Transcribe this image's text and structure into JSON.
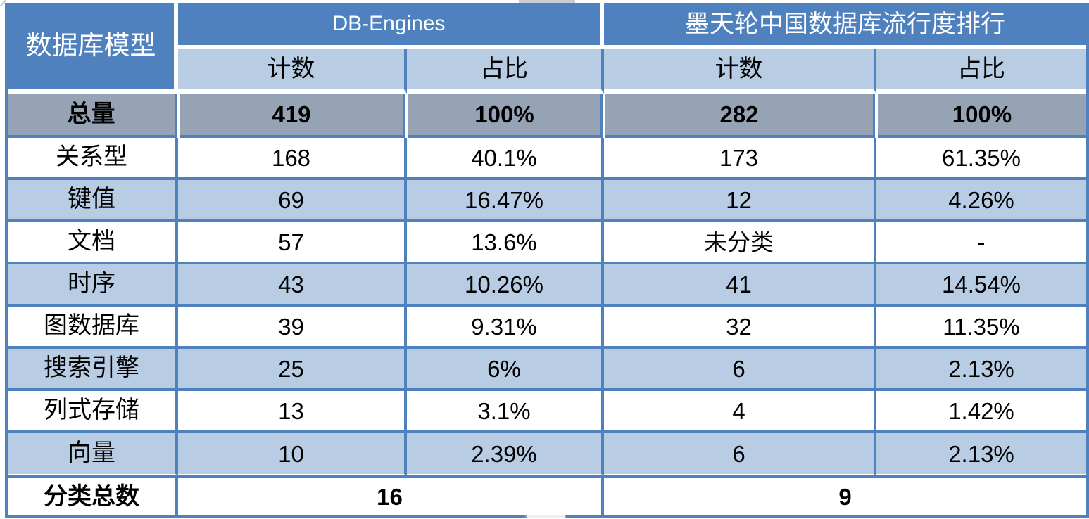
{
  "table": {
    "corner_header": "数据库模型",
    "group_headers": [
      {
        "label": "DB-Engines"
      },
      {
        "label": "墨天轮中国数据库流行度排行"
      }
    ],
    "sub_headers": [
      "计数",
      "占比",
      "计数",
      "占比"
    ],
    "total_row": {
      "label": "总量",
      "cells": [
        "419",
        "100%",
        "282",
        "100%"
      ]
    },
    "rows": [
      {
        "label": "关系型",
        "cells": [
          "168",
          "40.1%",
          "173",
          "61.35%"
        ]
      },
      {
        "label": "键值",
        "cells": [
          "69",
          "16.47%",
          "12",
          "4.26%"
        ]
      },
      {
        "label": "文档",
        "cells": [
          "57",
          "13.6%",
          "未分类",
          "-"
        ]
      },
      {
        "label": "时序",
        "cells": [
          "43",
          "10.26%",
          "41",
          "14.54%"
        ]
      },
      {
        "label": "图数据库",
        "cells": [
          "39",
          "9.31%",
          "32",
          "11.35%"
        ]
      },
      {
        "label": "搜索引擎",
        "cells": [
          "25",
          "6%",
          "6",
          "2.13%"
        ]
      },
      {
        "label": "列式存储",
        "cells": [
          "13",
          "3.1%",
          "4",
          "1.42%"
        ]
      },
      {
        "label": "向量",
        "cells": [
          "10",
          "2.39%",
          "6",
          "2.13%"
        ]
      }
    ],
    "footer_row": {
      "label": "分类总数",
      "cells": [
        "16",
        "9"
      ]
    }
  },
  "colors": {
    "header_blue": "#4e81bd",
    "band_light_blue": "#b8cce4",
    "total_row_gray": "#96a3b5",
    "border_blue": "#4e81bd",
    "header_text": "#ffffff",
    "body_text": "#000000"
  },
  "chart_data": {
    "type": "table",
    "columns": [
      "数据库模型",
      "DB-Engines 计数",
      "DB-Engines 占比",
      "墨天轮中国数据库流行度排行 计数",
      "墨天轮中国数据库流行度排行 占比"
    ],
    "rows": [
      [
        "总量",
        "419",
        "100%",
        "282",
        "100%"
      ],
      [
        "关系型",
        "168",
        "40.1%",
        "173",
        "61.35%"
      ],
      [
        "键值",
        "69",
        "16.47%",
        "12",
        "4.26%"
      ],
      [
        "文档",
        "57",
        "13.6%",
        "未分类",
        "-"
      ],
      [
        "时序",
        "43",
        "10.26%",
        "41",
        "14.54%"
      ],
      [
        "图数据库",
        "39",
        "9.31%",
        "32",
        "11.35%"
      ],
      [
        "搜索引擎",
        "25",
        "6%",
        "6",
        "2.13%"
      ],
      [
        "列式存储",
        "13",
        "3.1%",
        "4",
        "1.42%"
      ],
      [
        "向量",
        "10",
        "2.39%",
        "6",
        "2.13%"
      ],
      [
        "分类总数",
        "16",
        "",
        "9",
        ""
      ]
    ]
  }
}
